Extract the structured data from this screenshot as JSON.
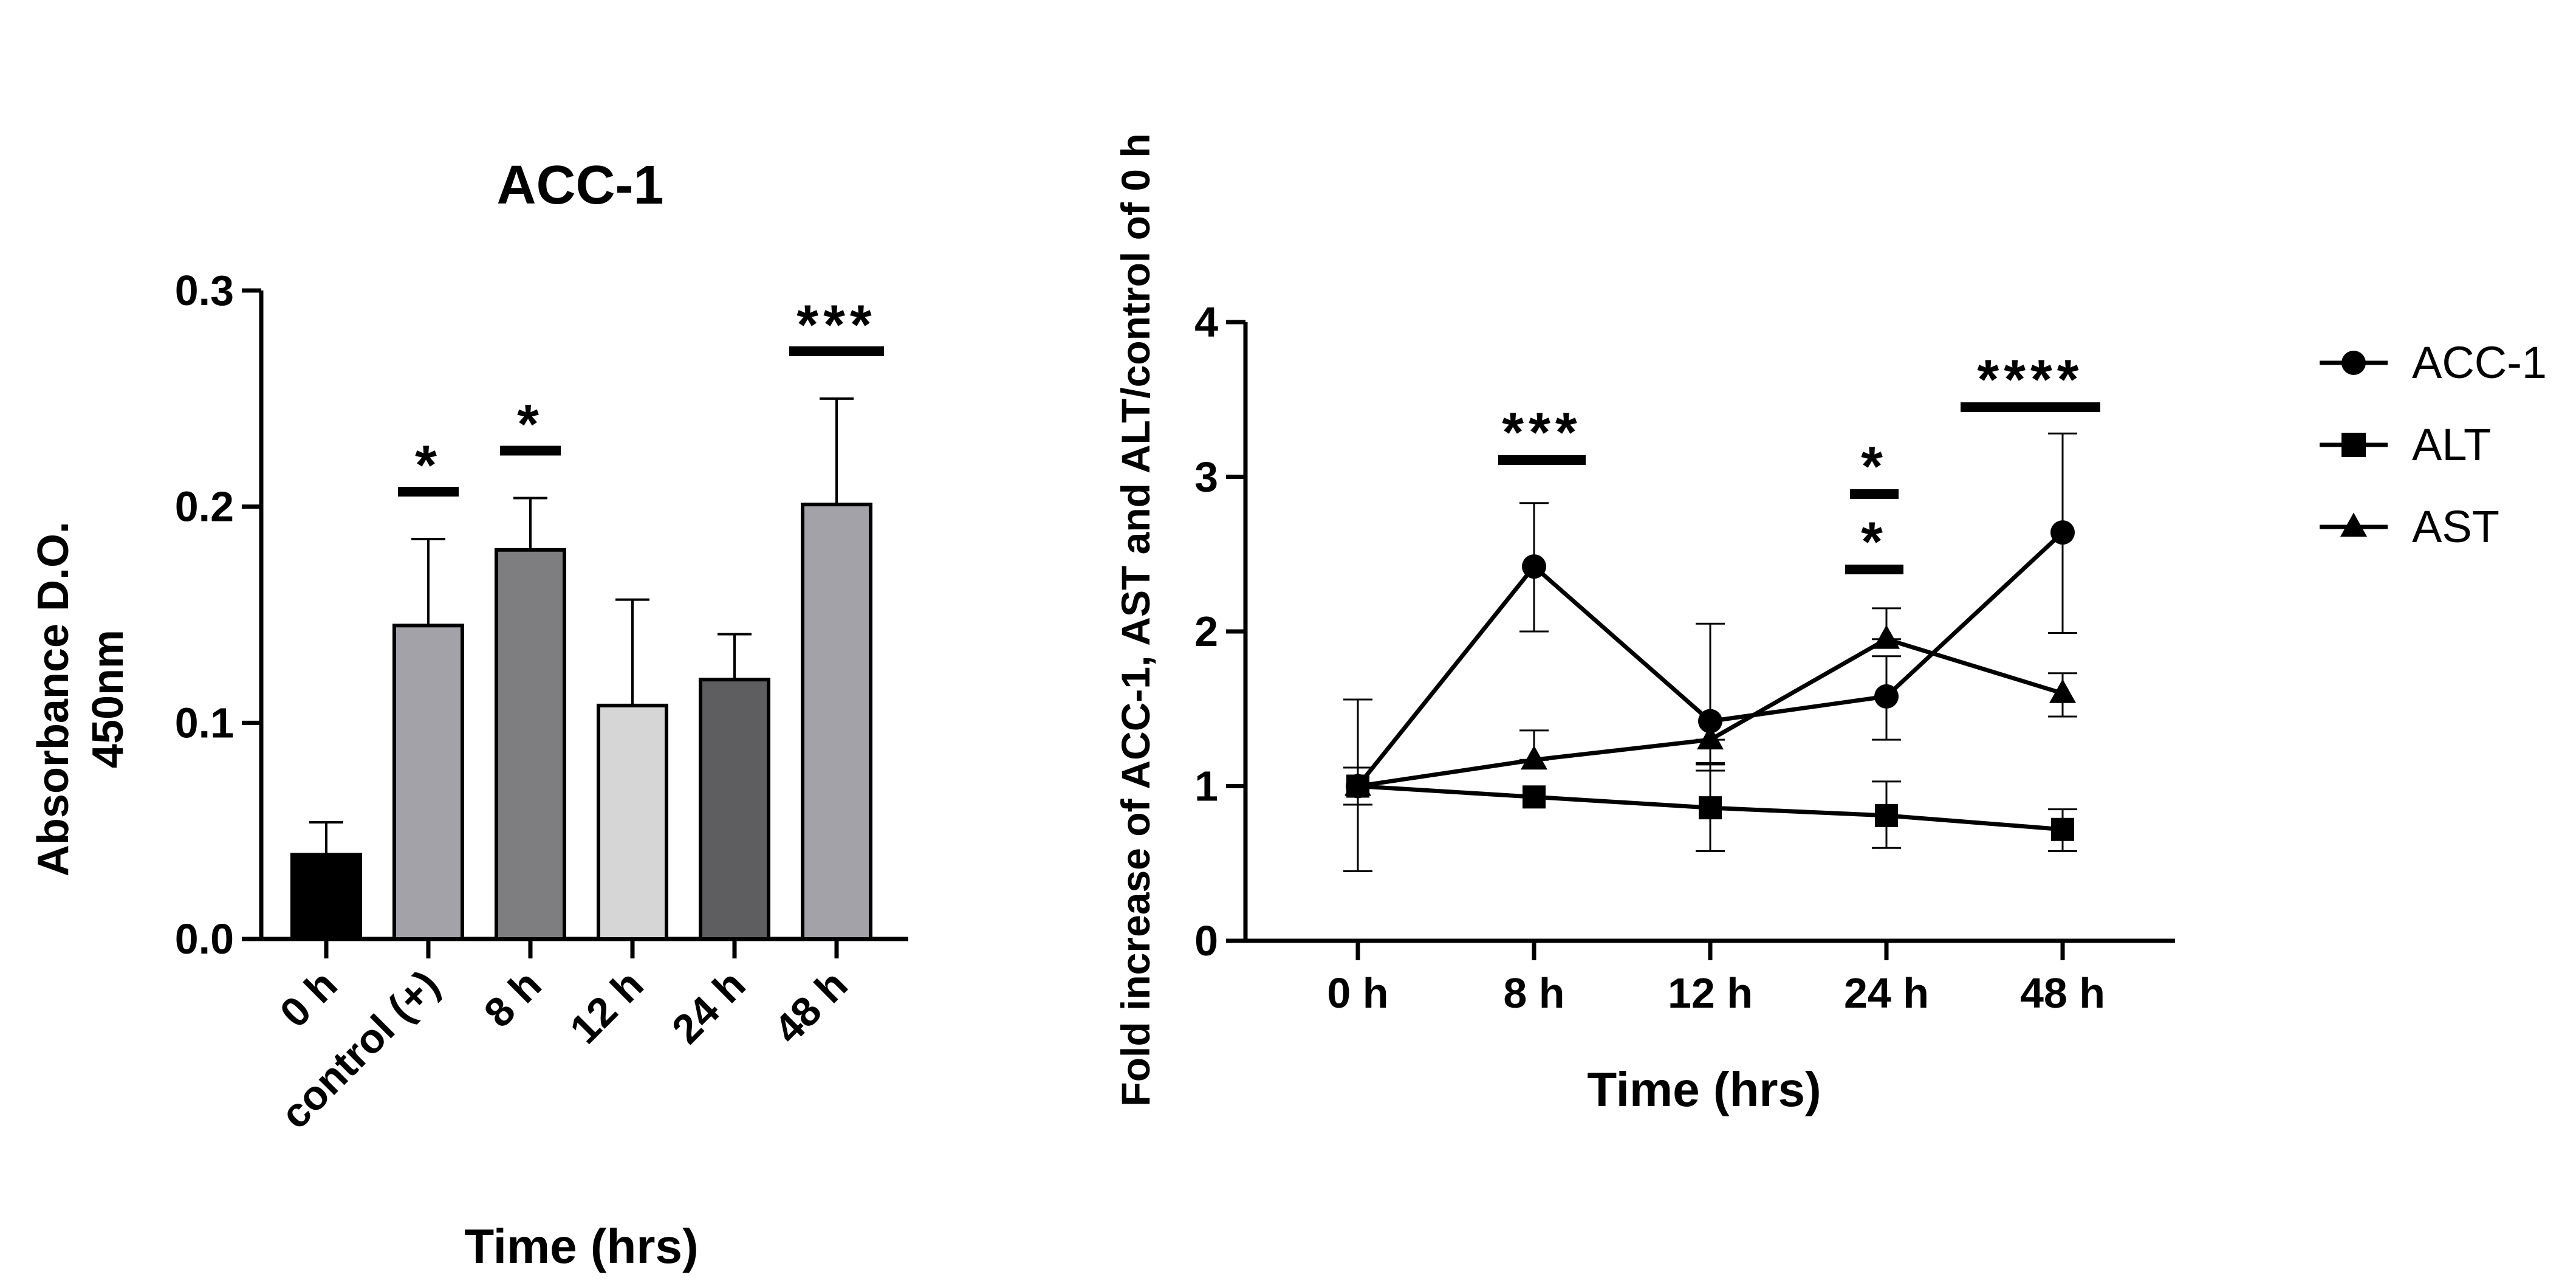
{
  "chart_data": [
    {
      "type": "bar",
      "title": "ACC-1",
      "xlabel": "Time (hrs)",
      "ylabel_lines": [
        "Absorbance  D.O.",
        "450nm"
      ],
      "ylim": [
        0,
        0.3
      ],
      "yticks": [
        "0.0",
        "0.1",
        "0.2",
        "0.3"
      ],
      "grid": false,
      "categories": [
        "0 h",
        "control (+)",
        "8 h",
        "12 h",
        "24 h",
        "48 h"
      ],
      "values": [
        0.039,
        0.145,
        0.18,
        0.108,
        0.12,
        0.201
      ],
      "error_upper": [
        0.054,
        0.185,
        0.204,
        0.157,
        0.141,
        0.25
      ],
      "bar_colors": [
        "#000000",
        "#a2a2a8",
        "#7e7e80",
        "#d6d6d6",
        "#5e5e60",
        "#a2a2a8"
      ],
      "significance": [
        {
          "category": "control (+)",
          "label": "*"
        },
        {
          "category": "8 h",
          "label": "*"
        },
        {
          "category": "48 h",
          "label": "***"
        }
      ]
    },
    {
      "type": "line",
      "xlabel": "Time (hrs)",
      "ylabel": "Fold increase of ACC-1, AST and ALT/control of 0 h",
      "ylim": [
        0,
        4
      ],
      "yticks": [
        "0",
        "1",
        "2",
        "3",
        "4"
      ],
      "grid": false,
      "categories": [
        "0 h",
        "8 h",
        "12 h",
        "24 h",
        "48 h"
      ],
      "legend_position": "right",
      "series": [
        {
          "name": "ACC-1",
          "marker": "circle",
          "values": [
            1.0,
            2.42,
            1.42,
            1.58,
            2.64
          ],
          "err_low": [
            0.45,
            2.0,
            1.15,
            1.3,
            1.99
          ],
          "err_high": [
            1.56,
            2.83,
            2.05,
            1.84,
            3.28
          ]
        },
        {
          "name": "ALT",
          "marker": "square",
          "values": [
            1.0,
            0.93,
            0.86,
            0.81,
            0.72
          ],
          "err_low": [
            0.88,
            0.93,
            0.58,
            0.6,
            0.58
          ],
          "err_high": [
            1.12,
            0.93,
            1.14,
            1.03,
            0.85
          ]
        },
        {
          "name": "AST",
          "marker": "triangle",
          "values": [
            1.0,
            1.17,
            1.3,
            1.95,
            1.6
          ],
          "err_low": [
            0.88,
            1.17,
            1.1,
            1.95,
            1.45
          ],
          "err_high": [
            1.12,
            1.36,
            1.3,
            2.15,
            1.73
          ]
        }
      ],
      "significance": [
        {
          "category": "8 h",
          "label": "***"
        },
        {
          "category": "24 h",
          "label": "*"
        },
        {
          "category": "24 h",
          "label": "*"
        },
        {
          "category": "48 h",
          "label": "****"
        }
      ]
    }
  ]
}
